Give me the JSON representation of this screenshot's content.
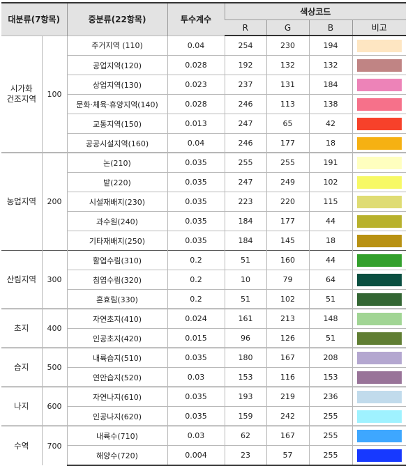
{
  "headers": {
    "major": "대분류(7항목)",
    "middle": "중분류(22항목)",
    "coef": "투수계수",
    "color_code": "색상코드",
    "r": "R",
    "g": "G",
    "b": "B",
    "note": "비고"
  },
  "groups": [
    {
      "name_lines": [
        "시가화",
        "건조지역"
      ],
      "code": "100",
      "rows": [
        {
          "name": "주거지역 (110)",
          "coef": "0.04",
          "r": "254",
          "g": "230",
          "b": "194",
          "color": "#fee6c2"
        },
        {
          "name": "공업지역(120)",
          "coef": "0.028",
          "r": "192",
          "g": "132",
          "b": "132",
          "color": "#c08484"
        },
        {
          "name": "상업지역(130)",
          "coef": "0.023",
          "r": "237",
          "g": "131",
          "b": "184",
          "color": "#ed83b8"
        },
        {
          "name": "문화·체육·휴양지역(140)",
          "coef": "0.028",
          "r": "246",
          "g": "113",
          "b": "138",
          "color": "#f6718a"
        },
        {
          "name": "교통지역(150)",
          "coef": "0.013",
          "r": "247",
          "g": "65",
          "b": "42",
          "color": "#f7412a"
        },
        {
          "name": "공공시설지역(160)",
          "coef": "0.04",
          "r": "246",
          "g": "177",
          "b": "18",
          "color": "#f6b112"
        }
      ]
    },
    {
      "name_lines": [
        "농업지역"
      ],
      "code": "200",
      "rows": [
        {
          "name": "논(210)",
          "coef": "0.035",
          "r": "255",
          "g": "255",
          "b": "191",
          "color": "#ffffbf"
        },
        {
          "name": "밭(220)",
          "coef": "0.035",
          "r": "247",
          "g": "249",
          "b": "102",
          "color": "#f7f966"
        },
        {
          "name": "시설재배지(230)",
          "coef": "0.035",
          "r": "223",
          "g": "220",
          "b": "115",
          "color": "#dfdc73"
        },
        {
          "name": "과수원(240)",
          "coef": "0.035",
          "r": "184",
          "g": "177",
          "b": "44",
          "color": "#b8b12c"
        },
        {
          "name": "기타재배지(250)",
          "coef": "0.035",
          "r": "184",
          "g": "145",
          "b": "18",
          "color": "#b89112"
        }
      ]
    },
    {
      "name_lines": [
        "산림지역"
      ],
      "code": "300",
      "rows": [
        {
          "name": "활엽수림(310)",
          "coef": "0.2",
          "r": "51",
          "g": "160",
          "b": "44",
          "color": "#33a02c"
        },
        {
          "name": "침엽수림(320)",
          "coef": "0.2",
          "r": "10",
          "g": "79",
          "b": "64",
          "color": "#0a4f40"
        },
        {
          "name": "혼효림(330)",
          "coef": "0.2",
          "r": "51",
          "g": "102",
          "b": "51",
          "color": "#336633"
        }
      ]
    },
    {
      "name_lines": [
        "초지"
      ],
      "code": "400",
      "rows": [
        {
          "name": "자연초지(410)",
          "coef": "0.024",
          "r": "161",
          "g": "213",
          "b": "148",
          "color": "#a1d594"
        },
        {
          "name": "인공초지(420)",
          "coef": "0.015",
          "r": "96",
          "g": "126",
          "b": "51",
          "color": "#607e33"
        }
      ]
    },
    {
      "name_lines": [
        "습지"
      ],
      "code": "500",
      "rows": [
        {
          "name": "내륙습지(510)",
          "coef": "0.035",
          "r": "180",
          "g": "167",
          "b": "208",
          "color": "#b4a7d0"
        },
        {
          "name": "연안습지(520)",
          "coef": "0.03",
          "r": "153",
          "g": "116",
          "b": "153",
          "color": "#997499"
        }
      ]
    },
    {
      "name_lines": [
        "나지"
      ],
      "code": "600",
      "rows": [
        {
          "name": "자연나지(610)",
          "coef": "0.035",
          "r": "193",
          "g": "219",
          "b": "236",
          "color": "#c1dbec"
        },
        {
          "name": "인공나지(620)",
          "coef": "0.035",
          "r": "159",
          "g": "242",
          "b": "255",
          "color": "#9ff2ff"
        }
      ]
    },
    {
      "name_lines": [
        "수역"
      ],
      "code": "700",
      "rows": [
        {
          "name": "내륙수(710)",
          "coef": "0.03",
          "r": "62",
          "g": "167",
          "b": "255",
          "color": "#3ea7ff"
        },
        {
          "name": "해양수(720)",
          "coef": "0.004",
          "r": "23",
          "g": "57",
          "b": "255",
          "color": "#1739ff"
        }
      ]
    }
  ]
}
